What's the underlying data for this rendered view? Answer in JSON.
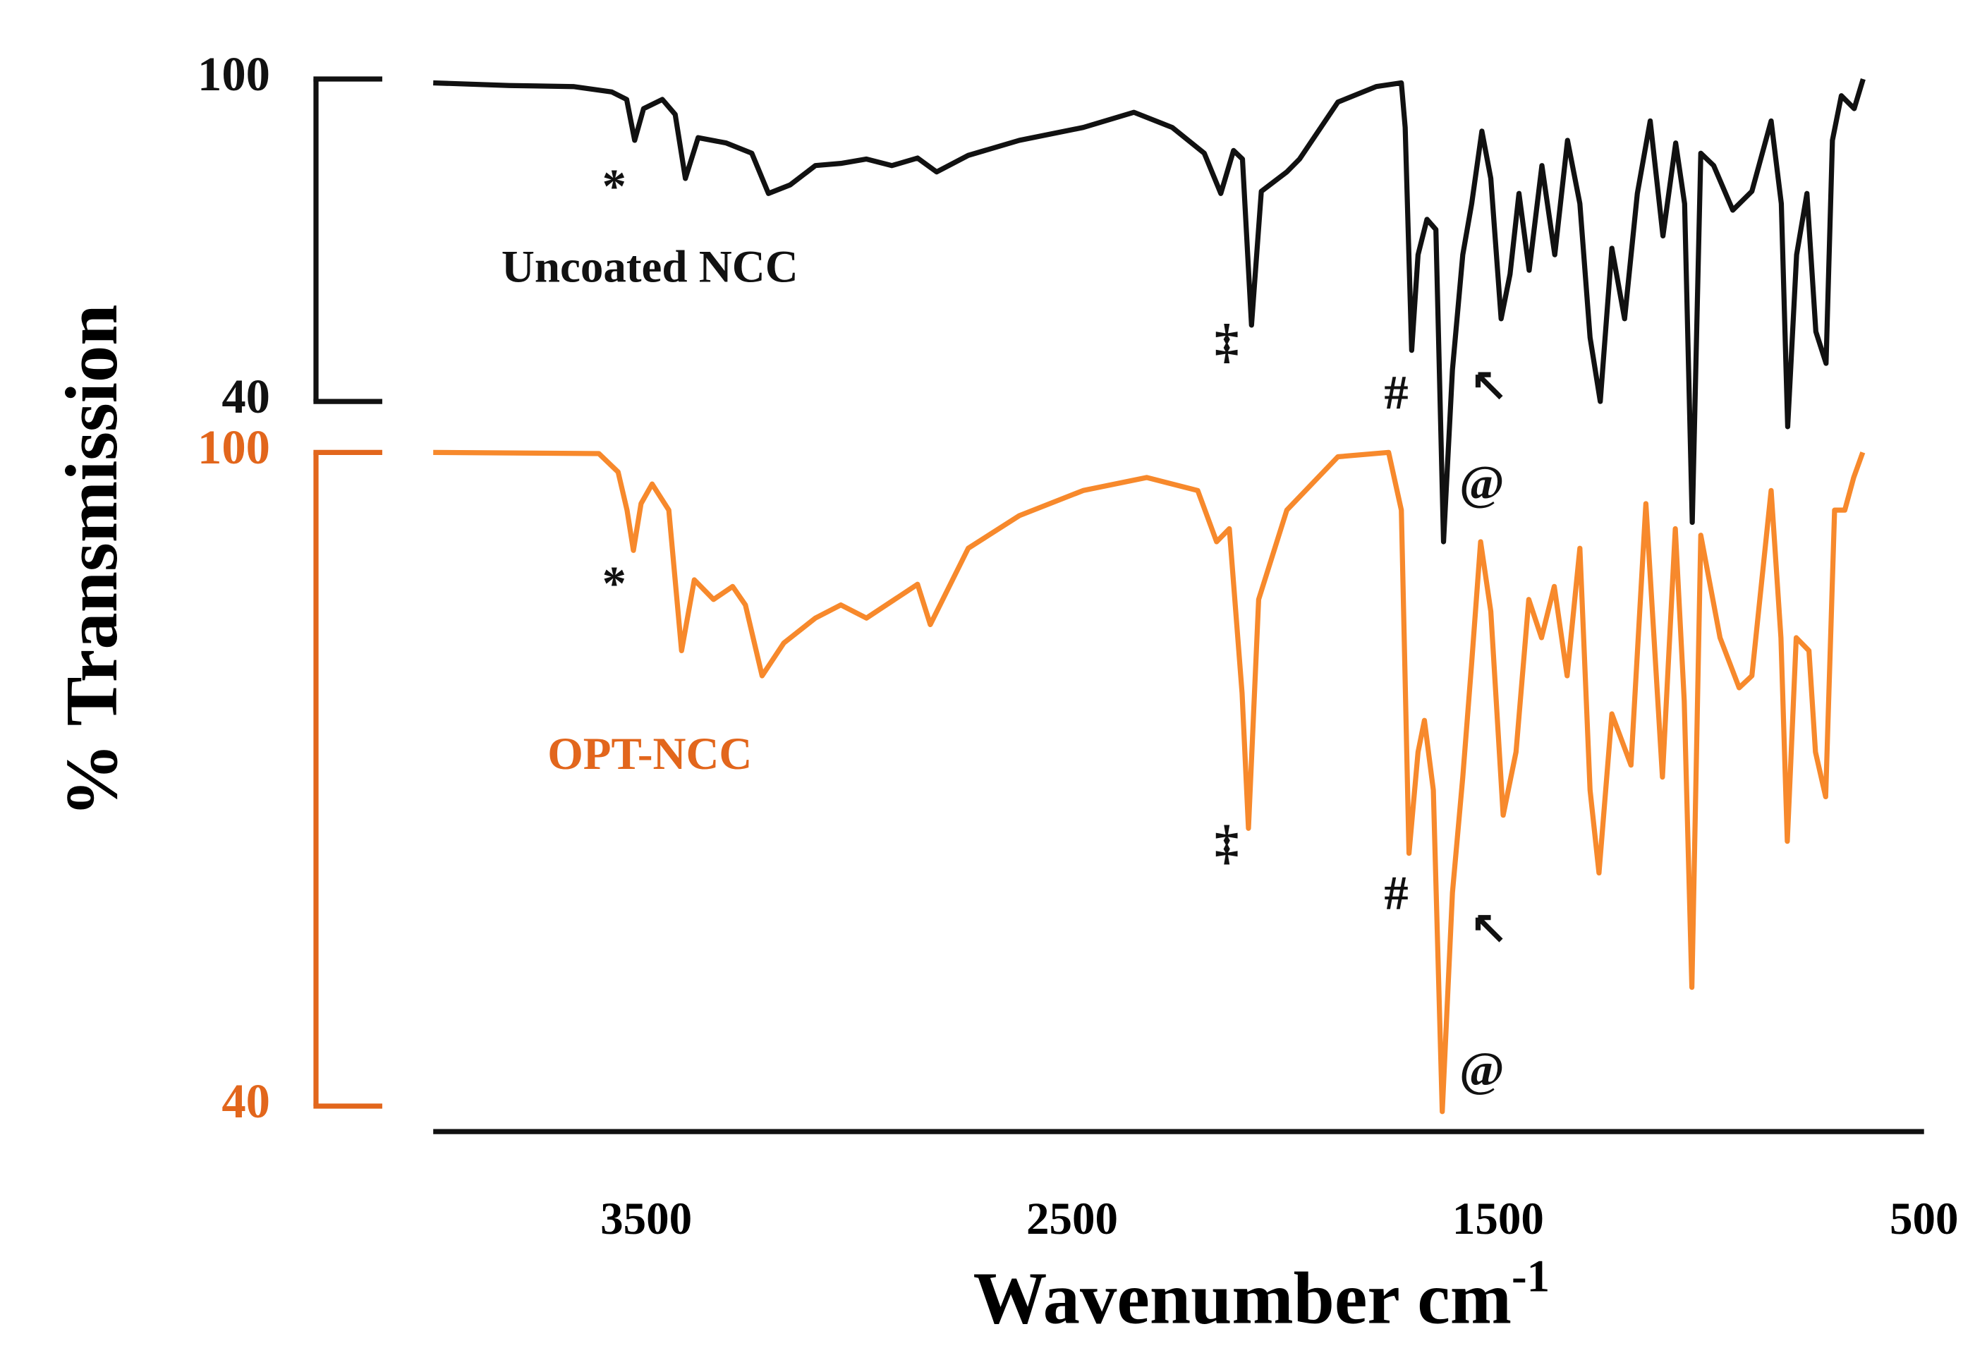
{
  "chart_data": {
    "type": "line",
    "y_label": "% Transmission",
    "x_label": "Wavenumber cm",
    "x_label_superscript": "-1",
    "xlim": [
      4000,
      500
    ],
    "xticks": [
      3500,
      2500,
      1500,
      500
    ],
    "series": [
      {
        "name": "Uncoated NCC",
        "color": "#111111",
        "axis_color": "#111111",
        "ylim": [
          40,
          100
        ],
        "yticks": [
          100,
          40
        ],
        "x": [
          4000,
          3821,
          3671,
          3581,
          3546,
          3527,
          3506,
          3462,
          3432,
          3408,
          3378,
          3312,
          3252,
          3213,
          3162,
          3103,
          3043,
          2983,
          2923,
          2863,
          2818,
          2744,
          2624,
          2474,
          2355,
          2265,
          2190,
          2151,
          2121,
          2100,
          2079,
          2056,
          1996,
          1966,
          1876,
          1786,
          1727,
          1718,
          1703,
          1688,
          1667,
          1646,
          1628,
          1607,
          1583,
          1562,
          1538,
          1517,
          1493,
          1472,
          1451,
          1427,
          1397,
          1367,
          1337,
          1308,
          1284,
          1260,
          1233,
          1203,
          1173,
          1143,
          1113,
          1083,
          1062,
          1044,
          1024,
          994,
          949,
          904,
          859,
          835,
          820,
          799,
          775,
          754,
          730,
          715,
          694,
          664,
          643
        ],
        "values": [
          99.3,
          98.8,
          98.6,
          97.6,
          96.2,
          88.6,
          94.5,
          96.2,
          93.4,
          81.5,
          89.1,
          88.1,
          86.2,
          78.7,
          80.3,
          83.9,
          84.3,
          85.1,
          83.9,
          85.3,
          82.7,
          85.8,
          88.6,
          91.0,
          93.8,
          91.0,
          86.2,
          78.7,
          86.7,
          85.1,
          54.2,
          79.1,
          82.7,
          85.1,
          95.7,
          98.6,
          99.3,
          91.0,
          49.5,
          67.3,
          73.9,
          72.0,
          13.9,
          45.9,
          67.3,
          76.8,
          90.3,
          81.5,
          55.4,
          63.7,
          78.7,
          64.4,
          83.9,
          67.3,
          88.6,
          76.8,
          51.9,
          40.0,
          68.5,
          55.4,
          78.7,
          92.2,
          70.8,
          88.1,
          76.8,
          17.5,
          86.2,
          83.9,
          75.6,
          79.1,
          92.2,
          76.8,
          35.3,
          67.3,
          78.7,
          53.0,
          47.1,
          88.6,
          96.9,
          94.5,
          100
        ],
        "annotations": [
          {
            "text": "*",
            "x": 3575,
            "y": 79.1
          },
          {
            "text": "‡",
            "x": 2137,
            "y": 50.2
          },
          {
            "text": "#",
            "x": 1739,
            "y": 40.7
          },
          {
            "text": "@",
            "x": 1538,
            "y": 23.9
          }
        ]
      },
      {
        "name": "OPT-NCC",
        "color": "#f7892c",
        "axis_color": "#e2661c",
        "ylim": [
          40,
          100
        ],
        "yticks": [
          100,
          40
        ],
        "x": [
          4000,
          3611,
          3566,
          3545,
          3530,
          3512,
          3486,
          3447,
          3417,
          3387,
          3342,
          3297,
          3267,
          3228,
          3177,
          3103,
          3043,
          2983,
          2863,
          2833,
          2744,
          2624,
          2474,
          2325,
          2205,
          2161,
          2131,
          2101,
          2086,
          2062,
          1996,
          1876,
          1757,
          1727,
          1709,
          1688,
          1673,
          1652,
          1631,
          1607,
          1583,
          1562,
          1541,
          1517,
          1488,
          1458,
          1428,
          1398,
          1368,
          1338,
          1308,
          1284,
          1263,
          1233,
          1188,
          1153,
          1114,
          1084,
          1063,
          1045,
          1024,
          979,
          934,
          904,
          859,
          836,
          821,
          800,
          770,
          755,
          731,
          710,
          686,
          665,
          644
        ],
        "values": [
          100,
          99.9,
          98.2,
          94.7,
          91.0,
          95.3,
          97.1,
          94.7,
          81.8,
          88.3,
          86.5,
          87.7,
          86.0,
          79.5,
          82.5,
          84.8,
          86.0,
          84.8,
          87.9,
          84.2,
          91.2,
          94.2,
          96.5,
          97.7,
          96.5,
          91.8,
          93.0,
          77.9,
          65.5,
          86.5,
          94.7,
          99.6,
          100,
          94.7,
          63.2,
          72.5,
          75.4,
          69.0,
          39.5,
          59.6,
          70.2,
          80.7,
          91.8,
          85.4,
          66.7,
          72.5,
          86.5,
          83.0,
          87.7,
          79.5,
          91.2,
          69.0,
          61.4,
          76.0,
          71.3,
          95.3,
          70.2,
          93.0,
          77.2,
          50.9,
          92.4,
          83.0,
          78.4,
          79.5,
          96.5,
          83.0,
          64.3,
          83.0,
          81.8,
          72.5,
          68.4,
          94.7,
          94.7,
          97.7,
          100
        ],
        "annotations": [
          {
            "text": "*",
            "x": 3575,
            "y": 87.5
          },
          {
            "text": "‡",
            "x": 2137,
            "y": 63.7
          },
          {
            "text": "#",
            "x": 1739,
            "y": 59.1
          },
          {
            "text": "@",
            "x": 1538,
            "y": 42.9
          }
        ]
      }
    ]
  }
}
